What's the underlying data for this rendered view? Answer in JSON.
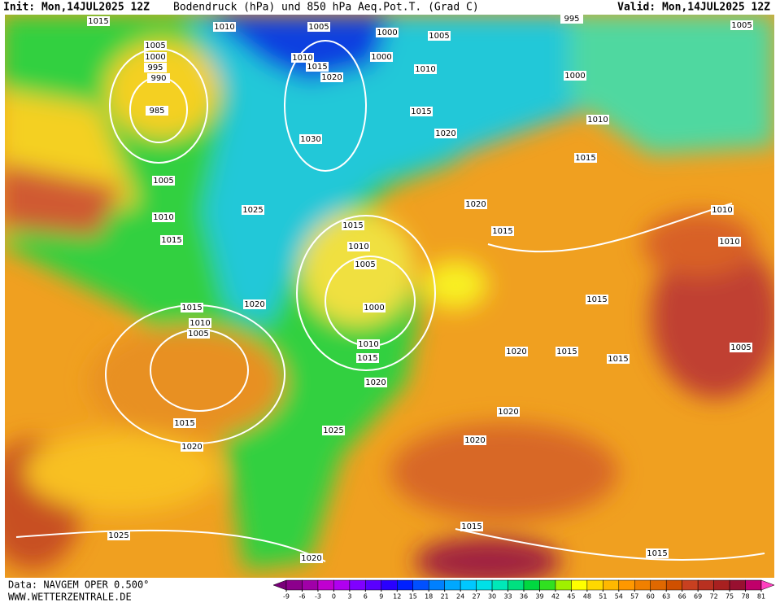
{
  "header": {
    "init": "Init: Mon,14JUL2025 12Z",
    "title": "Bodendruck (hPa) und 850 hPa Aeq.Pot.T. (Grad C)",
    "valid": "Valid: Mon,14JUL2025 12Z"
  },
  "footer": {
    "data": "Data: NAVGEM OPER 0.500°",
    "site": "WWW.WETTERZENTRALE.DE"
  },
  "colorbar": {
    "ticks": [
      -9,
      -6,
      -3,
      0,
      3,
      6,
      9,
      12,
      15,
      18,
      21,
      24,
      27,
      30,
      33,
      36,
      39,
      42,
      45,
      48,
      51,
      54,
      57,
      60,
      63,
      66,
      69,
      72,
      75,
      78,
      81
    ],
    "colors": [
      "#7a007a",
      "#8c008c",
      "#a000a8",
      "#c000d0",
      "#b000f0",
      "#8000ff",
      "#5a00ff",
      "#2a00ff",
      "#0020ff",
      "#0050ff",
      "#0080ff",
      "#00a8ff",
      "#00c8ff",
      "#00e0e8",
      "#00e8b8",
      "#00e080",
      "#00d840",
      "#30e020",
      "#a0f000",
      "#ffff00",
      "#ffd800",
      "#ffb800",
      "#ff9800",
      "#f08000",
      "#e06800",
      "#d05000",
      "#c84020",
      "#b83020",
      "#a82020",
      "#981030",
      "#c0006a",
      "#ff40c0"
    ]
  },
  "isobar_labels": [
    1015,
    1010,
    1005,
    1000,
    1005,
    995,
    1005,
    1005,
    1000,
    995,
    990,
    985,
    1010,
    1015,
    1020,
    1000,
    1010,
    1000,
    1015,
    1020,
    1010,
    1015,
    1030,
    1005,
    1010,
    1015,
    1025,
    1020,
    1015,
    1010,
    1005,
    1015,
    1010,
    1010,
    1000,
    1015,
    1020,
    1010,
    1005,
    1015,
    1010,
    1015,
    1020,
    1015,
    1015,
    1005,
    1020,
    1020,
    1015,
    1020,
    1025,
    1020,
    1025,
    1015,
    1015,
    1020
  ]
}
